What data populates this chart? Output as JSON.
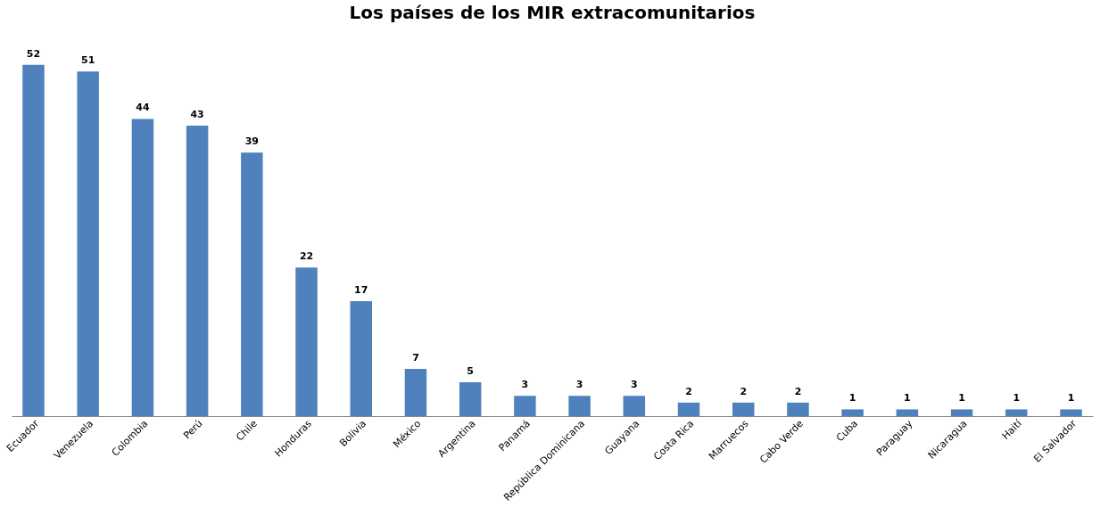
{
  "chart_data": {
    "type": "bar",
    "title": "Los países de los MIR extracomunitarios",
    "categories": [
      "Ecuador",
      "Venezuela",
      "Colombia",
      "Perú",
      "Chile",
      "Honduras",
      "Bolivia",
      "México",
      "Argentina",
      "Panamá",
      "República Dominicana",
      "Guayana",
      "Costa Rica",
      "Marruecos",
      "Cabo Verde",
      "Cuba",
      "Paraguay",
      "Nicaragua",
      "Haití",
      "El Salvador"
    ],
    "values": [
      52,
      51,
      44,
      43,
      39,
      22,
      17,
      7,
      5,
      3,
      3,
      3,
      2,
      2,
      2,
      1,
      1,
      1,
      1,
      1
    ],
    "color": "#4f81bd",
    "data_labels": true
  }
}
